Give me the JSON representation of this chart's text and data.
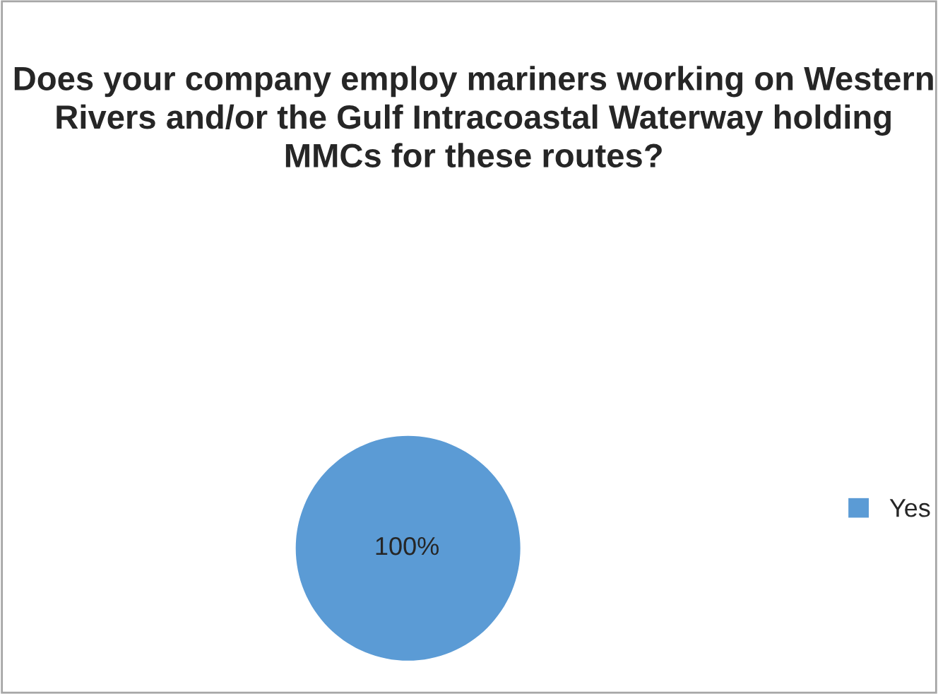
{
  "chart_data": {
    "type": "pie",
    "title": "Does your company employ mariners working on Western Rivers and/or the Gulf Intracoastal Waterway holding MMCs for these routes?",
    "categories": [
      "Yes"
    ],
    "values": [
      100
    ],
    "colors": [
      "#5b9bd5"
    ],
    "value_labels": [
      "100%"
    ],
    "legend": "right"
  }
}
